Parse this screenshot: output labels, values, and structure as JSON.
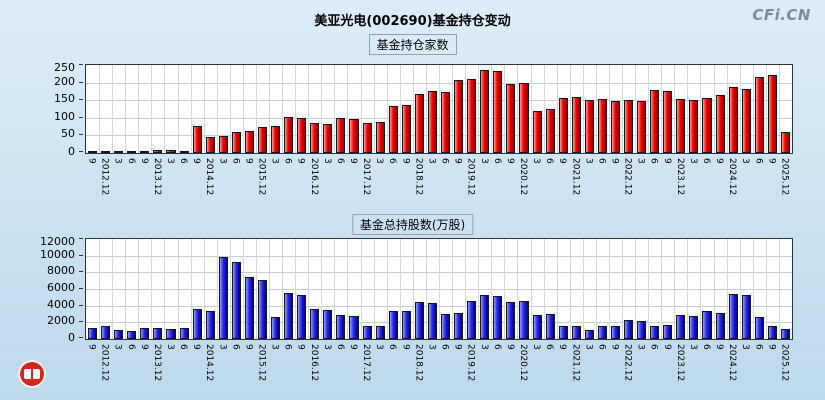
{
  "page": {
    "title": "美亚光电(002690)基金持仓变动",
    "watermark": "CFi.CN",
    "logo_icon": "cfi-seal"
  },
  "chart_data": [
    {
      "type": "bar",
      "title": "基金持仓家数",
      "legend_position": "none",
      "grid": true,
      "bar_color": "#f00000",
      "bar_color_light": "#ff9a9a",
      "bar_color_dark": "#9e0000",
      "ylim": [
        0,
        250
      ],
      "yticks": [
        0,
        50,
        100,
        150,
        200,
        250
      ],
      "xlabel": "",
      "ylabel": "",
      "categories": [
        "9",
        "2012.12",
        "3",
        "6",
        "9",
        "2013.12",
        "3",
        "6",
        "9",
        "2014.12",
        "3",
        "6",
        "9",
        "2015.12",
        "3",
        "6",
        "9",
        "2016.12",
        "3",
        "6",
        "9",
        "2017.12",
        "3",
        "6",
        "9",
        "2018.12",
        "3",
        "6",
        "9",
        "2019.12",
        "3",
        "6",
        "9",
        "2020.12",
        "3",
        "6",
        "9",
        "2021.12",
        "3",
        "6",
        "9",
        "2022.12",
        "3",
        "6",
        "9",
        "2023.12",
        "3",
        "6",
        "9",
        "2024.12",
        "3",
        "6",
        "9",
        "2025.12"
      ],
      "values": [
        6,
        4,
        3,
        3,
        6,
        8,
        8,
        6,
        78,
        45,
        48,
        60,
        62,
        75,
        78,
        103,
        100,
        85,
        83,
        100,
        97,
        85,
        88,
        133,
        135,
        168,
        175,
        172,
        207,
        210,
        235,
        232,
        196,
        200,
        120,
        125,
        155,
        158,
        150,
        152,
        147,
        150,
        149,
        180,
        176,
        152,
        150,
        156,
        165,
        188,
        182,
        215,
        222,
        60
      ]
    },
    {
      "type": "bar",
      "title": "基金总持股数(万股)",
      "legend_position": "none",
      "grid": true,
      "bar_color": "#2a2ae8",
      "bar_color_light": "#9a9aff",
      "bar_color_dark": "#000090",
      "ylim": [
        0,
        12000
      ],
      "yticks": [
        0,
        2000,
        4000,
        6000,
        8000,
        10000,
        12000
      ],
      "xlabel": "",
      "ylabel": "",
      "categories": [
        "9",
        "2012.12",
        "3",
        "6",
        "9",
        "2013.12",
        "3",
        "6",
        "9",
        "2014.12",
        "3",
        "6",
        "9",
        "2015.12",
        "3",
        "6",
        "9",
        "2016.12",
        "3",
        "6",
        "9",
        "2017.12",
        "3",
        "6",
        "9",
        "2018.12",
        "3",
        "6",
        "9",
        "2019.12",
        "3",
        "6",
        "9",
        "2020.12",
        "3",
        "6",
        "9",
        "2021.12",
        "3",
        "6",
        "9",
        "2022.12",
        "3",
        "6",
        "9",
        "2023.12",
        "3",
        "6",
        "9",
        "2024.12",
        "3",
        "6",
        "9",
        "2025.12"
      ],
      "values": [
        1300,
        1600,
        1100,
        1000,
        1300,
        1300,
        1250,
        1300,
        3600,
        3400,
        9800,
        9200,
        7400,
        7100,
        2600,
        5500,
        5300,
        3600,
        3500,
        2900,
        2700,
        1600,
        1500,
        3300,
        3400,
        4400,
        4300,
        3000,
        3100,
        4500,
        5300,
        5100,
        4400,
        4600,
        2900,
        3000,
        1600,
        1500,
        1100,
        1600,
        1500,
        2300,
        2200,
        1600,
        1700,
        2900,
        2700,
        3300,
        3100,
        5400,
        5300,
        2600,
        1500,
        1200
      ]
    }
  ]
}
